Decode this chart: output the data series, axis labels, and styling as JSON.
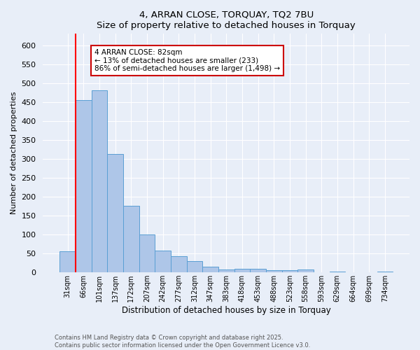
{
  "title1": "4, ARRAN CLOSE, TORQUAY, TQ2 7BU",
  "title2": "Size of property relative to detached houses in Torquay",
  "xlabel": "Distribution of detached houses by size in Torquay",
  "ylabel": "Number of detached properties",
  "categories": [
    "31sqm",
    "66sqm",
    "101sqm",
    "137sqm",
    "172sqm",
    "207sqm",
    "242sqm",
    "277sqm",
    "312sqm",
    "347sqm",
    "383sqm",
    "418sqm",
    "453sqm",
    "488sqm",
    "523sqm",
    "558sqm",
    "593sqm",
    "629sqm",
    "664sqm",
    "699sqm",
    "734sqm"
  ],
  "values": [
    55,
    455,
    480,
    312,
    175,
    100,
    58,
    42,
    30,
    15,
    8,
    10,
    10,
    5,
    5,
    8,
    0,
    2,
    0,
    0,
    3
  ],
  "bar_color": "#aec6e8",
  "bar_edge_color": "#5a9fd4",
  "red_line_index": 1,
  "ylim": [
    0,
    630
  ],
  "yticks": [
    0,
    50,
    100,
    150,
    200,
    250,
    300,
    350,
    400,
    450,
    500,
    550,
    600
  ],
  "annotation_text": "4 ARRAN CLOSE: 82sqm\n← 13% of detached houses are smaller (233)\n86% of semi-detached houses are larger (1,498) →",
  "annotation_box_color": "#ffffff",
  "annotation_box_edgecolor": "#cc0000",
  "footer_line1": "Contains HM Land Registry data © Crown copyright and database right 2025.",
  "footer_line2": "Contains public sector information licensed under the Open Government Licence v3.0.",
  "background_color": "#e8eef8",
  "plot_bg_color": "#e8eef8"
}
